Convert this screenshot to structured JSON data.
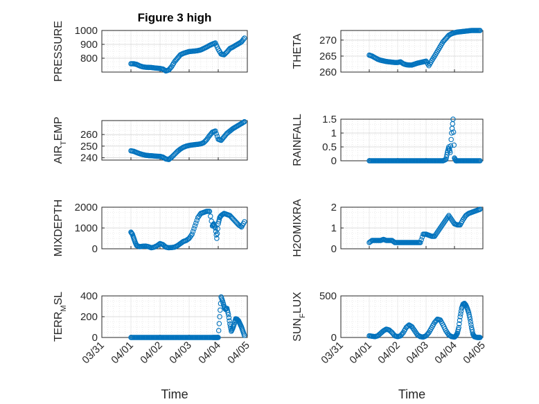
{
  "chart_data": [
    {
      "type": "scatter",
      "title": "Figure 3 high",
      "ylabel": "PRESSURE",
      "xlim": [
        "03/31",
        "04/05"
      ],
      "ylim": [
        700,
        1000
      ],
      "yticks": [
        800,
        900,
        1000
      ],
      "xticklabels": [],
      "xlabel": "",
      "marker_color": "#0072BD",
      "grid": true,
      "x": [
        1.0,
        1.1,
        1.2,
        1.3,
        1.4,
        1.5,
        1.6,
        1.7,
        1.8,
        1.9,
        2.0,
        2.1,
        2.2,
        2.3,
        2.4,
        2.5,
        2.6,
        2.7,
        2.8,
        2.9,
        3.0,
        3.1,
        3.2,
        3.3,
        3.4,
        3.5,
        3.6,
        3.7,
        3.8,
        3.9,
        4.0,
        4.1,
        4.2,
        4.3,
        4.4,
        4.5,
        4.6,
        4.7,
        4.8,
        4.9
      ],
      "y": [
        760,
        760,
        755,
        745,
        738,
        735,
        734,
        733,
        730,
        728,
        726,
        722,
        708,
        715,
        740,
        775,
        800,
        825,
        835,
        842,
        848,
        850,
        852,
        855,
        860,
        870,
        880,
        892,
        902,
        910,
        865,
        830,
        825,
        845,
        870,
        880,
        893,
        905,
        918,
        945
      ]
    },
    {
      "type": "scatter",
      "title": "",
      "ylabel": "THETA",
      "xlim": [
        "03/31",
        "04/05"
      ],
      "ylim": [
        260,
        273
      ],
      "yticks": [
        260,
        265,
        270
      ],
      "xticklabels": [],
      "xlabel": "",
      "marker_color": "#0072BD",
      "grid": true,
      "x": [
        1.0,
        1.1,
        1.2,
        1.3,
        1.4,
        1.5,
        1.6,
        1.7,
        1.8,
        1.9,
        2.0,
        2.1,
        2.2,
        2.3,
        2.4,
        2.5,
        2.6,
        2.7,
        2.8,
        2.9,
        3.0,
        3.1,
        3.2,
        3.3,
        3.4,
        3.5,
        3.6,
        3.7,
        3.8,
        3.9,
        4.0,
        4.1,
        4.2,
        4.3,
        4.4,
        4.5,
        4.6,
        4.7,
        4.8,
        4.9
      ],
      "y": [
        265.3,
        265,
        264.5,
        264,
        263.7,
        263.5,
        263.3,
        263.2,
        263.1,
        263,
        263,
        263.2,
        262.6,
        262.3,
        262.2,
        262.2,
        262.5,
        262.8,
        263,
        263.2,
        263.4,
        262,
        263.6,
        265,
        266.5,
        268,
        269.5,
        270.5,
        271.5,
        272,
        272.3,
        272.5,
        272.6,
        272.7,
        272.8,
        272.9,
        273,
        273,
        273,
        273
      ]
    },
    {
      "type": "scatter",
      "title": "",
      "ylabel": "AIR_TEMP",
      "xlim": [
        "03/31",
        "04/05"
      ],
      "ylim": [
        238,
        272
      ],
      "yticks": [
        240,
        250,
        260
      ],
      "xticklabels": [],
      "xlabel": "",
      "marker_color": "#0072BD",
      "grid": true,
      "x": [
        1.0,
        1.1,
        1.2,
        1.3,
        1.4,
        1.5,
        1.6,
        1.7,
        1.8,
        1.9,
        2.0,
        2.1,
        2.2,
        2.3,
        2.4,
        2.5,
        2.6,
        2.7,
        2.8,
        2.9,
        3.0,
        3.1,
        3.2,
        3.3,
        3.4,
        3.5,
        3.6,
        3.7,
        3.8,
        3.9,
        4.0,
        4.1,
        4.2,
        4.3,
        4.4,
        4.5,
        4.6,
        4.7,
        4.8,
        4.9
      ],
      "y": [
        246,
        245.5,
        244.5,
        243.5,
        242.8,
        242.2,
        241.9,
        241.7,
        241.5,
        241.3,
        241.2,
        240.5,
        239,
        238.5,
        240.5,
        243,
        245.5,
        247.5,
        249,
        250,
        250.6,
        251,
        251.3,
        251.6,
        252,
        253,
        255.5,
        259,
        262,
        263,
        256,
        255,
        258,
        261,
        263,
        265,
        266.5,
        268,
        269.5,
        271
      ]
    },
    {
      "type": "scatter",
      "title": "",
      "ylabel": "RAINFALL",
      "xlim": [
        "03/31",
        "04/05"
      ],
      "ylim": [
        0,
        1.5
      ],
      "yticks": [
        0,
        0.5,
        1,
        1.5
      ],
      "xticklabels": [],
      "xlabel": "",
      "marker_color": "#0072BD",
      "grid": true,
      "x": [
        1.0,
        1.1,
        1.2,
        1.3,
        1.4,
        1.5,
        1.6,
        1.7,
        1.8,
        1.9,
        2.0,
        2.1,
        2.2,
        2.3,
        2.4,
        2.5,
        2.6,
        2.7,
        2.8,
        2.9,
        3.0,
        3.1,
        3.2,
        3.3,
        3.4,
        3.5,
        3.6,
        3.7,
        3.75,
        3.8,
        3.85,
        3.9,
        3.95,
        4.0,
        4.05,
        4.1,
        4.2,
        4.3,
        4.4,
        4.5,
        4.6,
        4.7,
        4.8,
        4.9
      ],
      "y": [
        0,
        0,
        0,
        0,
        0,
        0,
        0,
        0,
        0,
        0,
        0,
        0,
        0,
        0,
        0,
        0,
        0,
        0,
        0,
        0,
        0,
        0,
        0,
        0,
        0,
        0,
        0,
        0.05,
        0.3,
        0.5,
        0.3,
        1.0,
        1.5,
        0.1,
        0,
        0,
        0,
        0,
        0,
        0,
        0,
        0,
        0,
        0
      ]
    },
    {
      "type": "scatter",
      "title": "",
      "ylabel": "MIXDEPTH",
      "xlim": [
        "03/31",
        "04/05"
      ],
      "ylim": [
        0,
        2000
      ],
      "yticks": [
        0,
        1000,
        2000
      ],
      "xticklabels": [],
      "xlabel": "",
      "marker_color": "#0072BD",
      "grid": true,
      "x": [
        1.0,
        1.05,
        1.1,
        1.15,
        1.2,
        1.3,
        1.4,
        1.5,
        1.6,
        1.7,
        1.8,
        1.9,
        2.0,
        2.1,
        2.2,
        2.3,
        2.4,
        2.5,
        2.6,
        2.7,
        2.8,
        2.9,
        3.0,
        3.1,
        3.2,
        3.3,
        3.4,
        3.5,
        3.6,
        3.7,
        3.8,
        3.85,
        3.9,
        3.95,
        4.0,
        4.05,
        4.1,
        4.2,
        4.3,
        4.4,
        4.5,
        4.6,
        4.7,
        4.8,
        4.9
      ],
      "y": [
        800,
        700,
        500,
        300,
        150,
        100,
        120,
        130,
        100,
        50,
        80,
        150,
        250,
        200,
        80,
        50,
        60,
        80,
        150,
        250,
        350,
        400,
        500,
        700,
        1100,
        1500,
        1700,
        1750,
        1800,
        1800,
        1100,
        1200,
        1000,
        500,
        1200,
        1500,
        1600,
        1700,
        1650,
        1600,
        1450,
        1300,
        1150,
        1050,
        1300
      ]
    },
    {
      "type": "scatter",
      "title": "",
      "ylabel": "H2OMIXRA",
      "xlim": [
        "03/31",
        "04/05"
      ],
      "ylim": [
        0,
        2
      ],
      "yticks": [
        0,
        1,
        2
      ],
      "xticklabels": [],
      "xlabel": "",
      "marker_color": "#0072BD",
      "grid": true,
      "x": [
        1.0,
        1.1,
        1.2,
        1.3,
        1.4,
        1.5,
        1.6,
        1.7,
        1.8,
        1.9,
        2.0,
        2.1,
        2.2,
        2.3,
        2.4,
        2.5,
        2.6,
        2.7,
        2.8,
        2.9,
        3.0,
        3.1,
        3.2,
        3.3,
        3.4,
        3.5,
        3.6,
        3.7,
        3.8,
        3.9,
        4.0,
        4.1,
        4.2,
        4.3,
        4.4,
        4.5,
        4.6,
        4.7,
        4.8,
        4.9
      ],
      "y": [
        0.3,
        0.4,
        0.4,
        0.4,
        0.4,
        0.45,
        0.4,
        0.4,
        0.4,
        0.3,
        0.3,
        0.3,
        0.3,
        0.3,
        0.3,
        0.3,
        0.3,
        0.3,
        0.3,
        0.7,
        0.7,
        0.65,
        0.6,
        0.6,
        0.8,
        1.0,
        1.2,
        1.4,
        1.6,
        1.4,
        1.2,
        1.15,
        1.15,
        1.4,
        1.6,
        1.7,
        1.75,
        1.8,
        1.85,
        1.9
      ]
    },
    {
      "type": "scatter",
      "title": "",
      "ylabel": "TERR_MSL",
      "xlim": [
        "03/31",
        "04/05"
      ],
      "ylim": [
        0,
        400
      ],
      "yticks": [
        0,
        200,
        400
      ],
      "xticklabels": [
        "03/31",
        "04/01",
        "04/02",
        "04/03",
        "04/04",
        "04/05"
      ],
      "xlabel": "Time",
      "marker_color": "#0072BD",
      "grid": true,
      "x": [
        1.0,
        1.1,
        1.2,
        1.3,
        1.4,
        1.5,
        1.6,
        1.7,
        1.8,
        1.9,
        2.0,
        2.1,
        2.2,
        2.3,
        2.4,
        2.5,
        2.6,
        2.7,
        2.8,
        2.9,
        3.0,
        3.1,
        3.2,
        3.3,
        3.4,
        3.5,
        3.6,
        3.7,
        3.8,
        3.85,
        3.9,
        3.95,
        4.0,
        4.05,
        4.1,
        4.15,
        4.2,
        4.25,
        4.3,
        4.35,
        4.4,
        4.45,
        4.5,
        4.55,
        4.6,
        4.65,
        4.7,
        4.75,
        4.8,
        4.85,
        4.9
      ],
      "y": [
        0,
        0,
        0,
        0,
        0,
        0,
        0,
        0,
        0,
        0,
        0,
        0,
        0,
        0,
        0,
        0,
        0,
        0,
        0,
        0,
        0,
        0,
        0,
        0,
        0,
        0,
        0,
        0,
        0,
        0,
        0,
        0,
        0,
        200,
        390,
        350,
        300,
        270,
        280,
        220,
        130,
        60,
        90,
        130,
        180,
        175,
        160,
        130,
        100,
        60,
        20
      ]
    },
    {
      "type": "scatter",
      "title": "",
      "ylabel": "SUN_FLUX",
      "xlim": [
        "03/31",
        "04/05"
      ],
      "ylim": [
        0,
        500
      ],
      "yticks": [
        0,
        500
      ],
      "xticklabels": [
        "03/31",
        "04/01",
        "04/02",
        "04/03",
        "04/04",
        "04/05"
      ],
      "xlabel": "Time",
      "marker_color": "#0072BD",
      "grid": true,
      "x": [
        1.0,
        1.1,
        1.2,
        1.3,
        1.4,
        1.5,
        1.6,
        1.7,
        1.8,
        1.9,
        2.0,
        2.1,
        2.2,
        2.3,
        2.4,
        2.5,
        2.6,
        2.7,
        2.8,
        2.9,
        3.0,
        3.1,
        3.2,
        3.3,
        3.4,
        3.5,
        3.6,
        3.7,
        3.8,
        3.9,
        4.0,
        4.05,
        4.1,
        4.15,
        4.2,
        4.25,
        4.3,
        4.35,
        4.4,
        4.45,
        4.5,
        4.55,
        4.6,
        4.65,
        4.7,
        4.75,
        4.8,
        4.85,
        4.9
      ],
      "y": [
        20,
        15,
        10,
        20,
        50,
        80,
        100,
        90,
        60,
        20,
        10,
        20,
        60,
        120,
        150,
        130,
        80,
        30,
        10,
        5,
        20,
        60,
        120,
        180,
        220,
        210,
        150,
        80,
        30,
        10,
        5,
        20,
        50,
        120,
        250,
        350,
        400,
        410,
        390,
        350,
        300,
        220,
        120,
        40,
        10,
        5,
        0,
        0,
        0
      ]
    }
  ]
}
